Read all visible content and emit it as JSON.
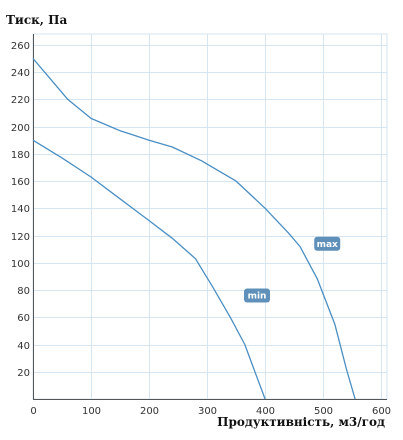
{
  "chart_data": {
    "type": "line",
    "title": "",
    "ylabel": "Тиск, Па",
    "xlabel": "Продуктивність, м3/год",
    "xlim": [
      0,
      610
    ],
    "ylim": [
      0,
      268
    ],
    "x_ticks": [
      0,
      100,
      200,
      300,
      400,
      500,
      600
    ],
    "y_ticks": [
      20,
      40,
      60,
      80,
      100,
      120,
      140,
      160,
      180,
      200,
      220,
      240,
      260
    ],
    "grid": true,
    "colors": {
      "line": "#4a8ec2",
      "grid": "#d5e6f2",
      "badge": "#5e90ba",
      "axis": "#555555"
    },
    "series": [
      {
        "name": "max",
        "x": [
          0,
          30,
          60,
          100,
          150,
          200,
          240,
          290,
          350,
          400,
          440,
          460,
          490,
          520,
          540,
          555
        ],
        "y": [
          250,
          235,
          220,
          206,
          197,
          190,
          185,
          175,
          160,
          140,
          122,
          112,
          88,
          55,
          22,
          0
        ]
      },
      {
        "name": "min",
        "x": [
          0,
          50,
          100,
          150,
          200,
          240,
          280,
          310,
          340,
          365,
          385,
          400
        ],
        "y": [
          190,
          177,
          163,
          147,
          131,
          118,
          103,
          82,
          60,
          40,
          17,
          0
        ]
      }
    ],
    "labels": [
      {
        "series": "max",
        "text": "max",
        "x": 507,
        "y": 114
      },
      {
        "series": "min",
        "text": "min",
        "x": 386,
        "y": 76
      }
    ]
  }
}
